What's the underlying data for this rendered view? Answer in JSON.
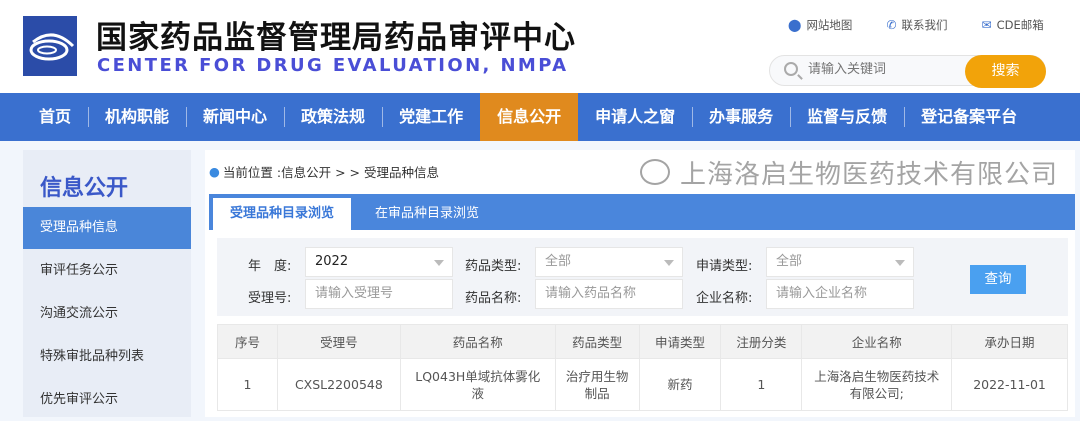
{
  "header": {
    "title_cn": "国家药品监督管理局药品审评中心",
    "title_en": "CENTER FOR DRUG EVALUATION, NMPA",
    "links": [
      {
        "label": "网站地图",
        "icon": "location-pin-icon"
      },
      {
        "label": "联系我们",
        "icon": "phone-icon"
      },
      {
        "label": "CDE邮箱",
        "icon": "mail-icon"
      }
    ],
    "search": {
      "placeholder": "请输入关键词",
      "button": "搜索"
    }
  },
  "nav": [
    "首页",
    "机构职能",
    "新闻中心",
    "政策法规",
    "党建工作",
    "信息公开",
    "申请人之窗",
    "办事服务",
    "监督与反馈",
    "登记备案平台"
  ],
  "nav_active": "信息公开",
  "sidebar": {
    "title": "信息公开",
    "items": [
      "受理品种信息",
      "审评任务公示",
      "沟通交流公示",
      "特殊审批品种列表",
      "优先审评公示"
    ]
  },
  "breadcrumb": {
    "prefix": "当前位置 : ",
    "path": "信息公开 > > 受理品种信息"
  },
  "tabs": [
    "受理品种目录浏览",
    "在审品种目录浏览"
  ],
  "filter": {
    "year": {
      "label": "年　度:",
      "value": "2022"
    },
    "drug_type": {
      "label": "药品类型:",
      "value": "全部"
    },
    "app_type": {
      "label": "申请类型:",
      "value": "全部"
    },
    "accept_no": {
      "label": "受理号:",
      "placeholder": "请输入受理号"
    },
    "drug_name": {
      "label": "药品名称:",
      "placeholder": "请输入药品名称"
    },
    "company": {
      "label": "企业名称:",
      "placeholder": "请输入企业名称"
    },
    "query_button": "查询"
  },
  "table": {
    "columns": [
      "序号",
      "受理号",
      "药品名称",
      "药品类型",
      "申请类型",
      "注册分类",
      "企业名称",
      "承办日期"
    ],
    "rows": [
      [
        "1",
        "CXSL2200548",
        "LQ043H单域抗体雾化液",
        "治疗用生物制品",
        "新药",
        "1",
        "上海洛启生物医药技术有限公司;",
        "2022-11-01"
      ]
    ]
  },
  "watermark": "上海洛启生物医药技术有限公司",
  "colors": {
    "nav": "#3a70cf",
    "nav_active": "#e08a1e",
    "search_button": "#f2a30a",
    "tab_bar": "#4a86dc"
  }
}
